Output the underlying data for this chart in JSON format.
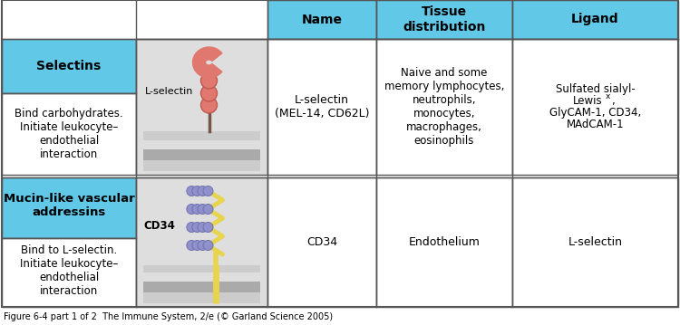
{
  "caption": "Figure 6-4 part 1 of 2  The Immune System, 2/e (© Garland Science 2005)",
  "header_bg": "#62C8E8",
  "border_color": "#555555",
  "col_headers": [
    "Name",
    "Tissue\ndistribution",
    "Ligand"
  ],
  "row1_category": "Selectins",
  "row1_function": "Bind carbohydrates.\nInitiate leukocyte–\nendothelial\ninteraction",
  "row1_illustration_label": "L-selectin",
  "row1_name": "L-selectin\n(MEL-14, CD62L)",
  "row1_tissue": "Naive and some\nmemory lymphocytes,\nneutrophils,\nmonocytes,\nmacrophages,\neosinophils",
  "row1_ligand_line1": "Sulfated sialyl-",
  "row1_ligand_line2": "Lewis",
  "row1_ligand_sup": "x",
  "row1_ligand_line3": ",",
  "row1_ligand_line4": "GlyCAM-1, CD34,",
  "row1_ligand_line5": "MAdCAM-1",
  "row2_category": "Mucin-like vascular\naddressins",
  "row2_function": "Bind to L-selectin.\nInitiate leukocyte–\nendothelial\ninteraction",
  "row2_illustration_label": "CD34",
  "row2_name": "CD34",
  "row2_tissue": "Endothelium",
  "row2_ligand": "L-selectin",
  "selectin_color": "#E07870",
  "selectin_edge": "#C05850",
  "cd34_color": "#E8D44D",
  "cd34_edge": "#C8AA20",
  "mucin_color": "#9090CC",
  "mucin_edge": "#7070AA",
  "membrane_light": "#CCCCCC",
  "membrane_mid": "#AAAAAA",
  "membrane_dark": "#888888",
  "illus_bg": "#DEDEDE",
  "stem_color": "#775544"
}
